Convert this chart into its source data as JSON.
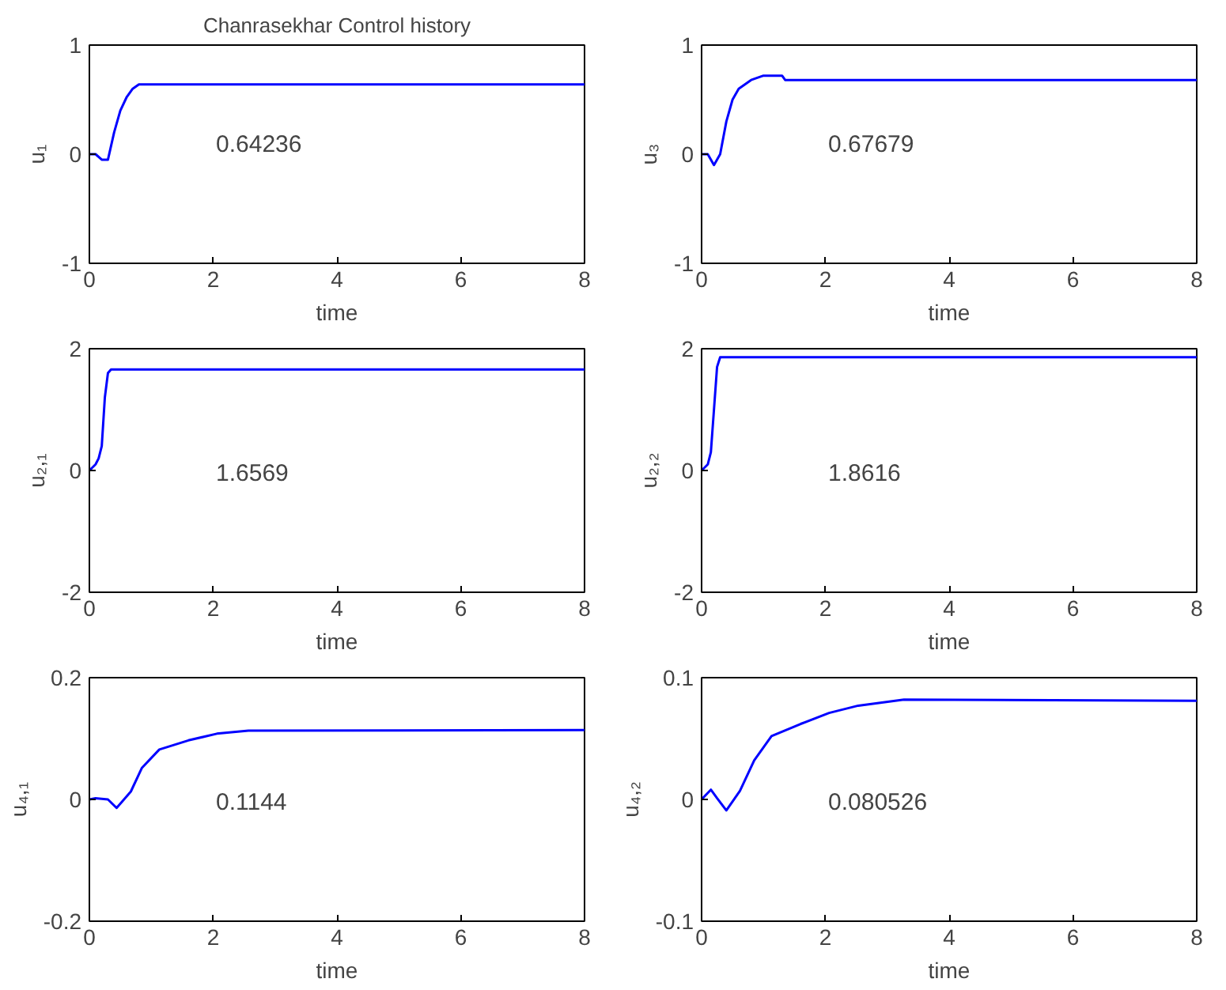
{
  "chart_data": [
    {
      "type": "line",
      "title": "Chanrasekhar Control history",
      "xlabel": "time",
      "ylabel": "u₁",
      "xlim": [
        0,
        8
      ],
      "xticks": [
        0,
        2,
        4,
        6,
        8
      ],
      "ylim": [
        -1,
        1
      ],
      "yticks": [
        -1,
        0,
        1
      ],
      "grid": false,
      "annotations": [
        "0.64236"
      ],
      "series": [
        {
          "color": "#0000ff",
          "x": [
            0,
            0.1,
            0.2,
            0.3,
            0.4,
            0.5,
            0.6,
            0.7,
            0.8,
            8
          ],
          "values": [
            0,
            0,
            -0.05,
            -0.05,
            0.2,
            0.4,
            0.52,
            0.6,
            0.64,
            0.64
          ]
        }
      ]
    },
    {
      "type": "line",
      "xlabel": "time",
      "ylabel": "u₃",
      "xlim": [
        0,
        8
      ],
      "xticks": [
        0,
        2,
        4,
        6,
        8
      ],
      "ylim": [
        -1,
        1
      ],
      "yticks": [
        -1,
        0,
        1
      ],
      "grid": false,
      "annotations": [
        "0.67679"
      ],
      "series": [
        {
          "color": "#0000ff",
          "x": [
            0,
            0.1,
            0.2,
            0.3,
            0.4,
            0.5,
            0.6,
            0.8,
            1.0,
            1.3,
            1.35,
            8
          ],
          "values": [
            0,
            0,
            -0.1,
            0,
            0.3,
            0.5,
            0.6,
            0.68,
            0.72,
            0.72,
            0.68,
            0.68
          ]
        }
      ]
    },
    {
      "type": "line",
      "xlabel": "time",
      "ylabel": "u₂,₁",
      "xlim": [
        0,
        8
      ],
      "xticks": [
        0,
        2,
        4,
        6,
        8
      ],
      "ylim": [
        -2,
        2
      ],
      "yticks": [
        -2,
        0,
        2
      ],
      "grid": false,
      "annotations": [
        "1.6569"
      ],
      "series": [
        {
          "color": "#0000ff",
          "x": [
            0,
            0.1,
            0.15,
            0.2,
            0.25,
            0.3,
            0.35,
            8
          ],
          "values": [
            0,
            0.1,
            0.2,
            0.4,
            1.2,
            1.6,
            1.66,
            1.66
          ]
        }
      ]
    },
    {
      "type": "line",
      "xlabel": "time",
      "ylabel": "u₂,₂",
      "xlim": [
        0,
        8
      ],
      "xticks": [
        0,
        2,
        4,
        6,
        8
      ],
      "ylim": [
        -2,
        2
      ],
      "yticks": [
        -2,
        0,
        2
      ],
      "grid": false,
      "annotations": [
        "1.8616"
      ],
      "series": [
        {
          "color": "#0000ff",
          "x": [
            0,
            0.1,
            0.15,
            0.2,
            0.25,
            0.3,
            8
          ],
          "values": [
            0,
            0.1,
            0.3,
            1.0,
            1.7,
            1.86,
            1.86
          ]
        }
      ]
    },
    {
      "type": "line",
      "xlabel": "time",
      "ylabel": "u₄,₁",
      "xlim": [
        0,
        8
      ],
      "xticks": [
        0,
        2,
        4,
        6,
        8
      ],
      "ylim": [
        -0.2,
        0.2
      ],
      "yticks": [
        -0.2,
        0,
        0.2
      ],
      "grid": false,
      "annotations": [
        "0.1144"
      ],
      "series": [
        {
          "color": "#0000ff",
          "x": [
            0,
            0.1,
            0.3,
            0.44,
            0.67,
            0.85,
            1.13,
            1.6,
            2.06,
            2.57,
            8
          ],
          "values": [
            0,
            0.002,
            0,
            -0.014,
            0.013,
            0.052,
            0.082,
            0.097,
            0.108,
            0.113,
            0.114
          ]
        }
      ]
    },
    {
      "type": "line",
      "xlabel": "time",
      "ylabel": "u₄,₂",
      "xlim": [
        0,
        8
      ],
      "xticks": [
        0,
        2,
        4,
        6,
        8
      ],
      "ylim": [
        -0.1,
        0.1
      ],
      "yticks": [
        -0.1,
        0,
        0.1
      ],
      "grid": false,
      "annotations": [
        "0.080526"
      ],
      "series": [
        {
          "color": "#0000ff",
          "x": [
            0,
            0.15,
            0.25,
            0.4,
            0.62,
            0.85,
            1.13,
            1.6,
            2.06,
            2.53,
            3.27,
            8
          ],
          "values": [
            0,
            0.008,
            0.001,
            -0.009,
            0.007,
            0.032,
            0.052,
            0.062,
            0.071,
            0.077,
            0.082,
            0.081
          ]
        }
      ]
    }
  ]
}
